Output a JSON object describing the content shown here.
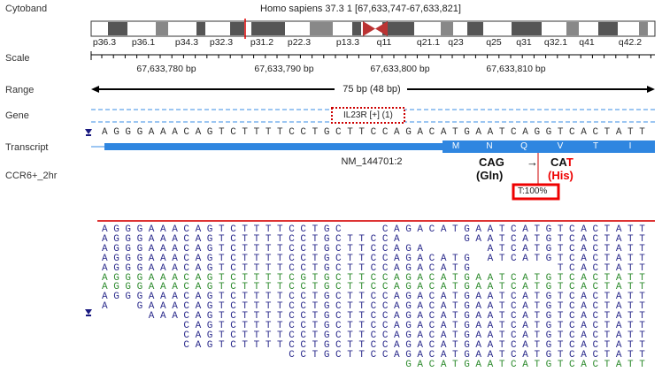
{
  "tracks": {
    "labels": [
      "Cytoband",
      "Scale",
      "Range",
      "Gene",
      "Transcript",
      "CCR6+_2hr"
    ]
  },
  "cytoband": {
    "title": "Homo sapiens 37.3 1 [67,633,747-67,633,821]",
    "bands": [
      "p36.3",
      "p36.1",
      "p34.3",
      "p32.3",
      "p31.2",
      "p22.3",
      "p13.3",
      "q11",
      "q21.1",
      "q23",
      "q25",
      "q31",
      "q32.1",
      "q41",
      "q42.2"
    ]
  },
  "scale": {
    "labels": [
      "67,633,780 bp",
      "67,633,790 bp",
      "67,633,800 bp",
      "67,633,810 bp"
    ]
  },
  "range": {
    "label": "75 bp (48 bp)"
  },
  "gene": {
    "label": "IL23R [+] (1)"
  },
  "reference": {
    "sequence": "AGGGAAACAGTCTTTTCCTGCTTCCAGACATGAATCAGGTCACTATT"
  },
  "transcript": {
    "name": "NM_144701:2",
    "amino_acids": [
      "M",
      "N",
      "Q",
      "V",
      "T",
      "I"
    ]
  },
  "variant": {
    "ref_codon": "CAG",
    "arrow": "→",
    "alt_codon_start": "CA",
    "alt_base": "T",
    "ref_amino_acid": "(Gln)",
    "alt_amino_acid": "(His)",
    "frequency": "T:100%"
  },
  "reads": [
    {
      "sequence": "AGGGAAACAGTCTTTTCCTGC   CAGACATGAATCATGTCACTATT",
      "color": "#2b2b8c"
    },
    {
      "sequence": "AGGGAAACAGTCTTTTCCTGCTTCCA     GAATCATGTCACTATT",
      "color": "#2b2b8c"
    },
    {
      "sequence": "AGGGAAACAGTCTTTTCCTGCTTCCAGA     ATCATGTCACTATT",
      "color": "#2b2b8c"
    },
    {
      "sequence": "AGGGAAACAGTCTTTTCCTGCTTCCAGACATG ATCATGTCACTATT",
      "color": "#2b2b8c"
    },
    {
      "sequence": "AGGGAAACAGTCTTTTCCTGCTTCCAGACATG       TCACTATT",
      "color": "#2b2b8c"
    },
    {
      "sequence": "AGGGAAACAGTCTTTTCGTGCTTCCAGACATGAATCATGTCACTATT",
      "color": "#2e8b2e"
    },
    {
      "sequence": "AGGGAAACAGTCTTTTCCTGCTTCCAGACATGAATCATGTCACTATT",
      "color": "#2e8b2e"
    },
    {
      "sequence": "AGGGAAACAGTCTTTTCCTGCTTCCAGACATGAATCATGTCACTATT",
      "color": "#2b2b8c"
    },
    {
      "sequence": "A  GAAACAGTCTTTTCCTGCTTCCAGACATGAATCATGTCACTATT",
      "color": "#2b2b8c"
    },
    {
      "sequence": "    AAACAGTCTTTTCCTGCTTCCAGACATGAATCATGTCACTATT",
      "color": "#2b2b8c"
    },
    {
      "sequence": "       CAGTCTTTTCCTGCTTCCAGACATGAATCATGTCACTATT",
      "color": "#2b2b8c"
    },
    {
      "sequence": "       CAGTCTTTTCCTGCTTCCAGACATGAATCATGTCACTATT",
      "color": "#2b2b8c"
    },
    {
      "sequence": "       CAGTCTTTTCCTGCTTCCAGACATGAATCATGTCACTATT",
      "color": "#2b2b8c"
    },
    {
      "sequence": "                CCTGCTTCCAGACATGAATCATGTCACTATT",
      "color": "#2b2b8c"
    },
    {
      "sequence": "                          GACATGAATCATGTCACTATT",
      "color": "#2e8b2e"
    }
  ]
}
